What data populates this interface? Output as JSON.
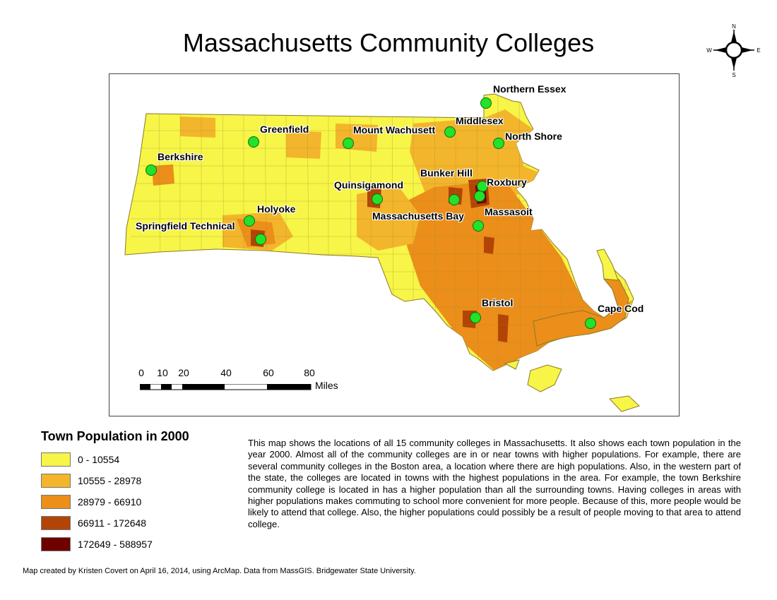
{
  "title": "Massachusetts Community Colleges",
  "north_arrow": {
    "icon": "compass-rose-icon",
    "n": "N",
    "s": "S",
    "e": "E",
    "w": "W"
  },
  "map": {
    "colleges": [
      {
        "name": "Northern Essex",
        "icon": "college-marker-icon"
      },
      {
        "name": "Middlesex",
        "icon": "college-marker-icon"
      },
      {
        "name": "Mount Wachusett",
        "icon": "college-marker-icon"
      },
      {
        "name": "Greenfield",
        "icon": "college-marker-icon"
      },
      {
        "name": "North Shore",
        "icon": "college-marker-icon"
      },
      {
        "name": "Berkshire",
        "icon": "college-marker-icon"
      },
      {
        "name": "Bunker Hill",
        "icon": "college-marker-icon"
      },
      {
        "name": "Roxbury",
        "icon": "college-marker-icon"
      },
      {
        "name": "Quinsigamond",
        "icon": "college-marker-icon"
      },
      {
        "name": "Holyoke",
        "icon": "college-marker-icon"
      },
      {
        "name": "Massasoit",
        "icon": "college-marker-icon"
      },
      {
        "name": "Massachusetts Bay",
        "icon": "college-marker-icon"
      },
      {
        "name": "Springfield Technical",
        "icon": "college-marker-icon"
      },
      {
        "name": "Bristol",
        "icon": "college-marker-icon"
      },
      {
        "name": "Cape Cod",
        "icon": "college-marker-icon"
      }
    ],
    "marker_color": "#22e22a"
  },
  "scale_bar": {
    "ticks": [
      "0",
      "10",
      "20",
      "40",
      "60",
      "80"
    ],
    "unit": "Miles"
  },
  "legend": {
    "title": "Town Population in 2000",
    "classes": [
      {
        "label": "0 - 10554",
        "color": "#f7f547"
      },
      {
        "label": "10555 - 28978",
        "color": "#f3b52b"
      },
      {
        "label": "28979 - 66910",
        "color": "#ec8e1a"
      },
      {
        "label": "66911 - 172648",
        "color": "#b24505"
      },
      {
        "label": "172649 - 588957",
        "color": "#6e0000"
      }
    ]
  },
  "description": "This map shows the locations of all 15 community colleges in Massachusetts. It also shows each town population in the year 2000. Almost all of the community colleges are in or near towns with higher populations. For example, there are several community colleges in the Boston area, a location where there are high populations. Also, in the western part of the state, the colleges are located in towns with the highest populations in the area. For example, the town Berkshire community college is located in has a higher population than all the surrounding towns. Having colleges in areas with higher populations makes commuting to school more convenient for more people. Because of this, more people would be likely to attend that college. Also, the higher populations could possibly be a result of people moving to that area to attend college.",
  "credit": "Map created by Kristen Covert on April 16, 2014, using ArcMap. Data from MassGIS. Bridgewater State University."
}
